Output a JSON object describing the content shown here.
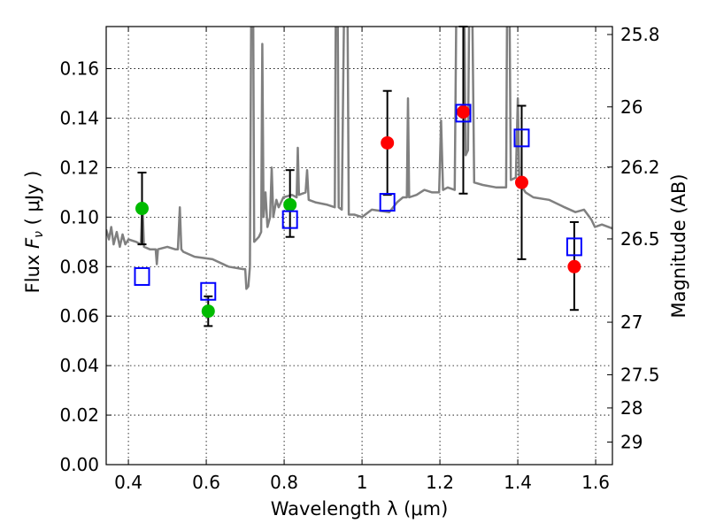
{
  "chart_data": {
    "type": "line",
    "xlabel": "Wavelength  λ (μm)",
    "ylabel": "Flux  F_ν  ( μJy )",
    "ylabel_parts": {
      "pre": "Flux ",
      "sym": "F",
      "sub": "ν",
      "post": " (  μJy )"
    },
    "y2label": "Magnitude (AB)",
    "xlim": [
      0.343,
      1.643
    ],
    "ylim": [
      0,
      0.177
    ],
    "grid": true,
    "xticks": [
      0.4,
      0.6,
      0.8,
      1.0,
      1.2,
      1.4,
      1.6
    ],
    "xtick_labels": [
      "0.4",
      "0.6",
      "0.8",
      "1",
      "1.2",
      "1.4",
      "1.6"
    ],
    "yticks": [
      0,
      0.02,
      0.04,
      0.06,
      0.08,
      0.1,
      0.12,
      0.14,
      0.16
    ],
    "ytick_labels": [
      "0.00",
      "0.02",
      "0.04",
      "0.06",
      "0.08",
      "0.10",
      "0.12",
      "0.14",
      "0.16"
    ],
    "y2ticks": [
      25.8,
      26,
      26.2,
      26.5,
      27,
      27.5,
      28,
      29
    ],
    "y2tick_labels": [
      "25.8",
      "26",
      "26.2",
      "26.5",
      "27",
      "27.5",
      "28",
      "29"
    ],
    "colors": {
      "spectrum": "#808080",
      "green": "#00bb00",
      "red": "#ff0000",
      "model": "#0000ff",
      "err": "#000000"
    },
    "spectrum": [
      [
        0.343,
        0.095
      ],
      [
        0.35,
        0.091
      ],
      [
        0.356,
        0.096
      ],
      [
        0.362,
        0.089
      ],
      [
        0.37,
        0.094
      ],
      [
        0.378,
        0.088
      ],
      [
        0.385,
        0.093
      ],
      [
        0.392,
        0.089
      ],
      [
        0.4,
        0.091
      ],
      [
        0.42,
        0.09
      ],
      [
        0.432,
        0.089
      ],
      [
        0.436,
        0.106
      ],
      [
        0.44,
        0.088
      ],
      [
        0.455,
        0.087
      ],
      [
        0.47,
        0.087
      ],
      [
        0.473,
        0.081
      ],
      [
        0.476,
        0.087
      ],
      [
        0.5,
        0.088
      ],
      [
        0.52,
        0.087
      ],
      [
        0.527,
        0.087
      ],
      [
        0.532,
        0.104
      ],
      [
        0.536,
        0.087
      ],
      [
        0.541,
        0.086
      ],
      [
        0.57,
        0.084
      ],
      [
        0.616,
        0.083
      ],
      [
        0.657,
        0.08
      ],
      [
        0.695,
        0.079
      ],
      [
        0.7,
        0.079
      ],
      [
        0.703,
        0.071
      ],
      [
        0.708,
        0.072
      ],
      [
        0.712,
        0.08
      ],
      [
        0.716,
        0.2
      ],
      [
        0.72,
        0.2
      ],
      [
        0.723,
        0.09
      ],
      [
        0.735,
        0.092
      ],
      [
        0.741,
        0.094
      ],
      [
        0.744,
        0.17
      ],
      [
        0.747,
        0.1
      ],
      [
        0.752,
        0.11
      ],
      [
        0.757,
        0.096
      ],
      [
        0.764,
        0.1
      ],
      [
        0.768,
        0.12
      ],
      [
        0.772,
        0.1
      ],
      [
        0.78,
        0.107
      ],
      [
        0.786,
        0.104
      ],
      [
        0.798,
        0.108
      ],
      [
        0.82,
        0.109
      ],
      [
        0.832,
        0.108
      ],
      [
        0.835,
        0.128
      ],
      [
        0.838,
        0.109
      ],
      [
        0.855,
        0.11
      ],
      [
        0.859,
        0.119
      ],
      [
        0.863,
        0.107
      ],
      [
        0.88,
        0.106
      ],
      [
        0.911,
        0.105
      ],
      [
        0.93,
        0.104
      ],
      [
        0.933,
        0.2
      ],
      [
        0.937,
        0.2
      ],
      [
        0.94,
        0.104
      ],
      [
        0.948,
        0.103
      ],
      [
        0.955,
        0.2
      ],
      [
        0.962,
        0.2
      ],
      [
        0.966,
        0.101
      ],
      [
        0.98,
        0.101
      ],
      [
        1.0,
        0.1
      ],
      [
        1.025,
        0.103
      ],
      [
        1.07,
        0.102
      ],
      [
        1.09,
        0.106
      ],
      [
        1.105,
        0.108
      ],
      [
        1.115,
        0.108
      ],
      [
        1.118,
        0.148
      ],
      [
        1.121,
        0.108
      ],
      [
        1.14,
        0.109
      ],
      [
        1.16,
        0.111
      ],
      [
        1.18,
        0.11
      ],
      [
        1.198,
        0.11
      ],
      [
        1.203,
        0.139
      ],
      [
        1.208,
        0.111
      ],
      [
        1.22,
        0.112
      ],
      [
        1.238,
        0.111
      ],
      [
        1.243,
        0.2
      ],
      [
        1.262,
        0.2
      ],
      [
        1.266,
        0.125
      ],
      [
        1.272,
        0.127
      ],
      [
        1.276,
        0.2
      ],
      [
        1.282,
        0.2
      ],
      [
        1.288,
        0.114
      ],
      [
        1.31,
        0.113
      ],
      [
        1.345,
        0.112
      ],
      [
        1.37,
        0.112
      ],
      [
        1.373,
        0.2
      ],
      [
        1.378,
        0.2
      ],
      [
        1.382,
        0.115
      ],
      [
        1.395,
        0.116
      ],
      [
        1.4,
        0.148
      ],
      [
        1.404,
        0.114
      ],
      [
        1.42,
        0.11
      ],
      [
        1.44,
        0.108
      ],
      [
        1.48,
        0.107
      ],
      [
        1.52,
        0.104
      ],
      [
        1.548,
        0.102
      ],
      [
        1.57,
        0.103
      ],
      [
        1.589,
        0.099
      ],
      [
        1.598,
        0.096
      ],
      [
        1.616,
        0.097
      ],
      [
        1.65,
        0.095
      ]
    ],
    "observed_green": [
      {
        "x": 0.435,
        "y": 0.1035,
        "lo": 0.089,
        "hi": 0.118
      },
      {
        "x": 0.605,
        "y": 0.062,
        "lo": 0.056,
        "hi": 0.068
      },
      {
        "x": 0.815,
        "y": 0.105,
        "lo": 0.092,
        "hi": 0.119
      }
    ],
    "observed_red": [
      {
        "x": 1.065,
        "y": 0.13,
        "lo": 0.109,
        "hi": 0.151
      },
      {
        "x": 1.26,
        "y": 0.1425,
        "lo": 0.1095,
        "hi": 0.177
      },
      {
        "x": 1.41,
        "y": 0.114,
        "lo": 0.083,
        "hi": 0.145
      },
      {
        "x": 1.545,
        "y": 0.08,
        "lo": 0.0625,
        "hi": 0.098
      }
    ],
    "model_points": [
      {
        "x": 0.435,
        "y": 0.076
      },
      {
        "x": 0.605,
        "y": 0.07
      },
      {
        "x": 0.815,
        "y": 0.099
      },
      {
        "x": 1.065,
        "y": 0.106
      },
      {
        "x": 1.26,
        "y": 0.142
      },
      {
        "x": 1.41,
        "y": 0.132
      },
      {
        "x": 1.545,
        "y": 0.088
      }
    ]
  }
}
